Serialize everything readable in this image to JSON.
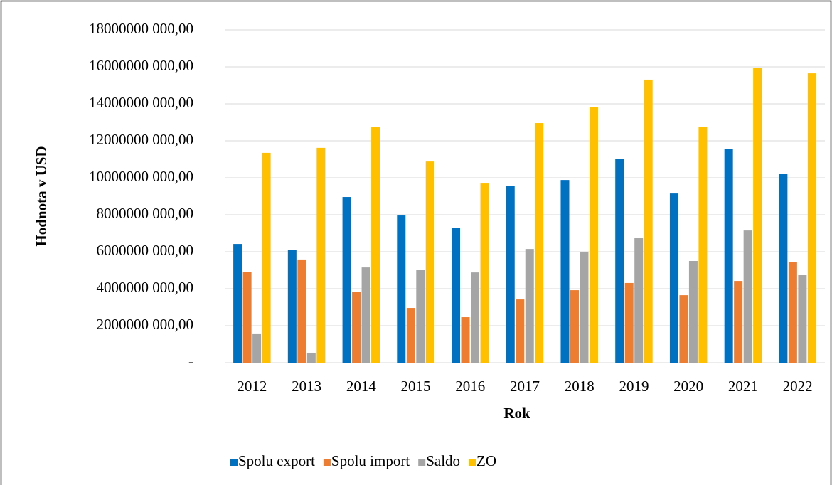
{
  "chart_data": {
    "type": "bar",
    "x_label": "Rok",
    "y_label": "Hodnota v USD",
    "categories": [
      "2012",
      "2013",
      "2014",
      "2015",
      "2016",
      "2017",
      "2018",
      "2019",
      "2020",
      "2021",
      "2022"
    ],
    "series": [
      {
        "name": "Spolu export",
        "color": "#0070c0",
        "values": [
          6420000000,
          6080000000,
          8960000000,
          7960000000,
          7270000000,
          9540000000,
          9880000000,
          11000000000,
          9150000000,
          11540000000,
          10230000000
        ]
      },
      {
        "name": "Spolu import",
        "color": "#ed7d31",
        "values": [
          4920000000,
          5580000000,
          3810000000,
          2960000000,
          2460000000,
          3420000000,
          3920000000,
          4310000000,
          3650000000,
          4420000000,
          5460000000
        ]
      },
      {
        "name": "Saldo",
        "color": "#a5a5a5",
        "values": [
          1580000000,
          540000000,
          5150000000,
          5000000000,
          4880000000,
          6150000000,
          6000000000,
          6730000000,
          5500000000,
          7150000000,
          4770000000
        ]
      },
      {
        "name": "ZO",
        "color": "#ffc000",
        "values": [
          11350000000,
          11620000000,
          12730000000,
          10880000000,
          9690000000,
          12960000000,
          13810000000,
          15310000000,
          12770000000,
          15960000000,
          15650000000
        ]
      }
    ],
    "ylim": [
      0,
      18000000000
    ],
    "yticks": [
      {
        "value": 0,
        "label": "-"
      },
      {
        "value": 2000000000,
        "label": "2000000 000,00"
      },
      {
        "value": 4000000000,
        "label": "4000000 000,00"
      },
      {
        "value": 6000000000,
        "label": "6000000 000,00"
      },
      {
        "value": 8000000000,
        "label": "8000000 000,00"
      },
      {
        "value": 10000000000,
        "label": "10000000 000,00"
      },
      {
        "value": 12000000000,
        "label": "12000000 000,00"
      },
      {
        "value": 14000000000,
        "label": "14000000 000,00"
      },
      {
        "value": 16000000000,
        "label": "16000000 000,00"
      },
      {
        "value": 18000000000,
        "label": "18000000 000,00"
      }
    ],
    "grid": true,
    "legend": "bottom"
  }
}
